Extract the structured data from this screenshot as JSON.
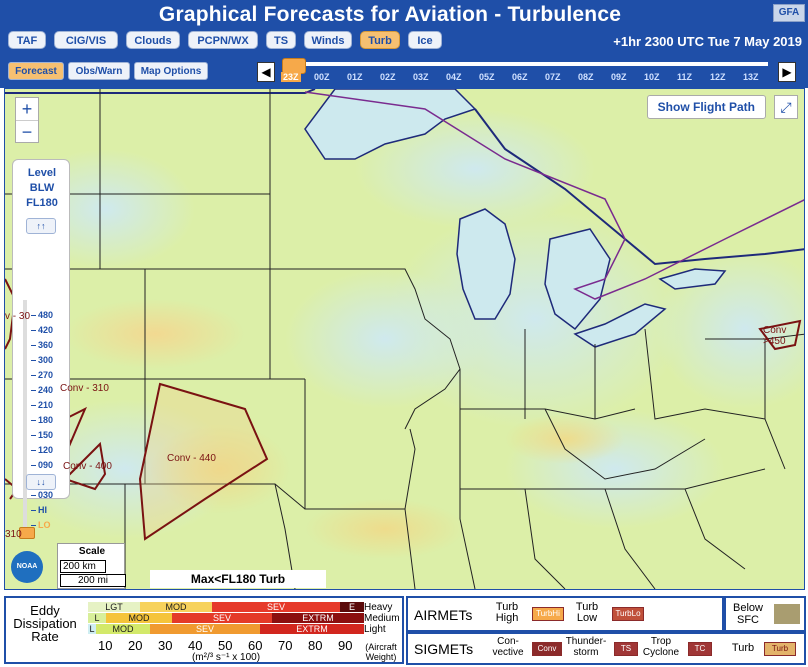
{
  "header": {
    "title": "Graphical Forecasts for Aviation - Turbulence",
    "badge": "GFA",
    "products": [
      "TAF",
      "CIG/VIS",
      "Clouds",
      "PCPN/WX",
      "TS",
      "Winds",
      "Turb",
      "Ice"
    ],
    "active_product": "Turb",
    "time_label": "+1hr 2300 UTC Tue 7 May 2019",
    "modes": [
      "Forecast",
      "Obs/Warn",
      "Map Options"
    ],
    "active_mode": "Forecast",
    "hours": [
      "23Z",
      "00Z",
      "01Z",
      "02Z",
      "03Z",
      "04Z",
      "05Z",
      "06Z",
      "07Z",
      "08Z",
      "09Z",
      "10Z",
      "11Z",
      "12Z",
      "13Z"
    ],
    "active_hour": "23Z",
    "prev_icon": "◀",
    "next_icon": "▶"
  },
  "map": {
    "zoom_in": "+",
    "zoom_out": "−",
    "level_title": [
      "Level",
      "BLW",
      "FL180"
    ],
    "level_up": "↑↑",
    "level_down": "↓↓",
    "levels": [
      "480",
      "420",
      "360",
      "300",
      "270",
      "240",
      "210",
      "180",
      "150",
      "120",
      "090",
      "060",
      "030",
      "HI",
      "LO"
    ],
    "selected_level": "LO",
    "show_flight_path": "Show Flight Path",
    "expand_icon": "⤢",
    "scale_title": "Scale",
    "scale_km": "200 km",
    "scale_mi": "200 mi",
    "noaa": "NOAA",
    "max_label": "Max<FL180 Turb",
    "sigmet_labels": [
      "Conv - 440",
      "Conv - 400",
      "Conv - 310",
      "Conv >450",
      "v - 30",
      "310"
    ]
  },
  "legend": {
    "rate_label": [
      "Eddy",
      "Dissipation",
      "Rate"
    ],
    "rows": [
      {
        "label": "Heavy",
        "cells": [
          "LGT",
          "MOD",
          "SEV",
          "E"
        ]
      },
      {
        "label": "Medium",
        "cells": [
          "L",
          "MOD",
          "SEV",
          "EXTRM"
        ]
      },
      {
        "label": "Light",
        "cells": [
          "L",
          "MOD",
          "SEV",
          "EXTRM"
        ]
      }
    ],
    "scale_values": [
      "10",
      "20",
      "30",
      "40",
      "50",
      "60",
      "70",
      "80",
      "90"
    ],
    "units": "(m²/³ s⁻¹ x 100)",
    "aircraft_weight": [
      "(Aircraft",
      "Weight)"
    ],
    "airmets_label": "AIRMETs",
    "sigmets_label": "SIGMETs",
    "airmet_items": [
      {
        "label": [
          "Turb",
          "High"
        ],
        "chip": "TurbHi"
      },
      {
        "label": [
          "Turb",
          "Low"
        ],
        "chip": "TurbLo"
      }
    ],
    "sigmet_items": [
      {
        "label": [
          "Con-",
          "vective"
        ],
        "chip": "Conv"
      },
      {
        "label": [
          "Thunder-",
          "storm"
        ],
        "chip": "TS"
      },
      {
        "label": [
          "Trop",
          "Cyclone"
        ],
        "chip": "TC"
      },
      {
        "label": [
          "Turb"
        ],
        "chip": "Turb"
      }
    ],
    "below_sfc": [
      "Below",
      "SFC"
    ],
    "colors": {
      "turb_green": "#d9eea5",
      "light_blue": "#cde9ee",
      "sigmet_red": "#7a1212",
      "airmet_purple": "#7a2b8f",
      "accent": "#1f4fa8",
      "orange": "#f6a94a"
    }
  }
}
